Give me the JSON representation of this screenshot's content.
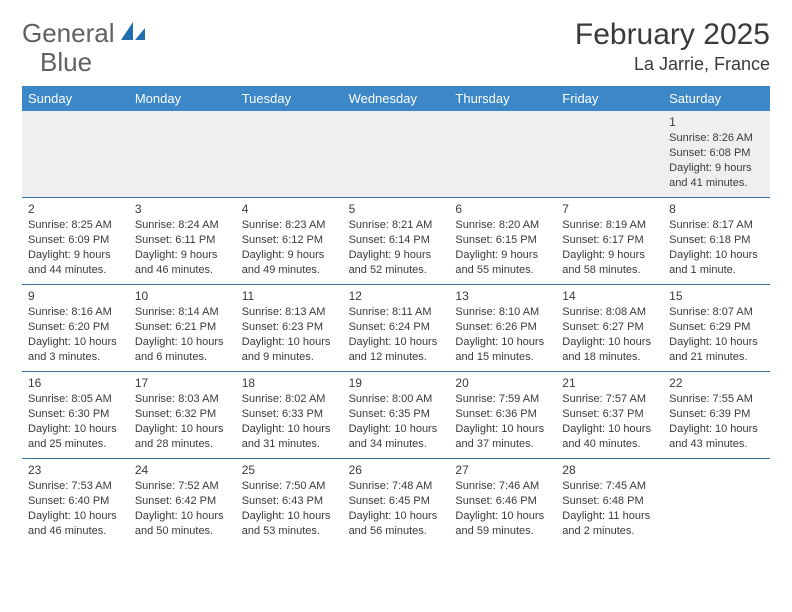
{
  "brand": {
    "part1": "General",
    "part2": "Blue"
  },
  "title": "February 2025",
  "location": "La Jarrie, France",
  "weekday_names": [
    "Sunday",
    "Monday",
    "Tuesday",
    "Wednesday",
    "Thursday",
    "Friday",
    "Saturday"
  ],
  "colors": {
    "header_bg": "#3b87c8",
    "header_text": "#ffffff",
    "row_border": "#3b6fa0",
    "shaded_row": "#efefef",
    "text": "#3a3a3a",
    "logo_accent": "#1f6fb0"
  },
  "weeks": [
    [
      null,
      null,
      null,
      null,
      null,
      null,
      {
        "day": "1",
        "sunrise": "Sunrise: 8:26 AM",
        "sunset": "Sunset: 6:08 PM",
        "daylight": "Daylight: 9 hours and 41 minutes."
      }
    ],
    [
      {
        "day": "2",
        "sunrise": "Sunrise: 8:25 AM",
        "sunset": "Sunset: 6:09 PM",
        "daylight": "Daylight: 9 hours and 44 minutes."
      },
      {
        "day": "3",
        "sunrise": "Sunrise: 8:24 AM",
        "sunset": "Sunset: 6:11 PM",
        "daylight": "Daylight: 9 hours and 46 minutes."
      },
      {
        "day": "4",
        "sunrise": "Sunrise: 8:23 AM",
        "sunset": "Sunset: 6:12 PM",
        "daylight": "Daylight: 9 hours and 49 minutes."
      },
      {
        "day": "5",
        "sunrise": "Sunrise: 8:21 AM",
        "sunset": "Sunset: 6:14 PM",
        "daylight": "Daylight: 9 hours and 52 minutes."
      },
      {
        "day": "6",
        "sunrise": "Sunrise: 8:20 AM",
        "sunset": "Sunset: 6:15 PM",
        "daylight": "Daylight: 9 hours and 55 minutes."
      },
      {
        "day": "7",
        "sunrise": "Sunrise: 8:19 AM",
        "sunset": "Sunset: 6:17 PM",
        "daylight": "Daylight: 9 hours and 58 minutes."
      },
      {
        "day": "8",
        "sunrise": "Sunrise: 8:17 AM",
        "sunset": "Sunset: 6:18 PM",
        "daylight": "Daylight: 10 hours and 1 minute."
      }
    ],
    [
      {
        "day": "9",
        "sunrise": "Sunrise: 8:16 AM",
        "sunset": "Sunset: 6:20 PM",
        "daylight": "Daylight: 10 hours and 3 minutes."
      },
      {
        "day": "10",
        "sunrise": "Sunrise: 8:14 AM",
        "sunset": "Sunset: 6:21 PM",
        "daylight": "Daylight: 10 hours and 6 minutes."
      },
      {
        "day": "11",
        "sunrise": "Sunrise: 8:13 AM",
        "sunset": "Sunset: 6:23 PM",
        "daylight": "Daylight: 10 hours and 9 minutes."
      },
      {
        "day": "12",
        "sunrise": "Sunrise: 8:11 AM",
        "sunset": "Sunset: 6:24 PM",
        "daylight": "Daylight: 10 hours and 12 minutes."
      },
      {
        "day": "13",
        "sunrise": "Sunrise: 8:10 AM",
        "sunset": "Sunset: 6:26 PM",
        "daylight": "Daylight: 10 hours and 15 minutes."
      },
      {
        "day": "14",
        "sunrise": "Sunrise: 8:08 AM",
        "sunset": "Sunset: 6:27 PM",
        "daylight": "Daylight: 10 hours and 18 minutes."
      },
      {
        "day": "15",
        "sunrise": "Sunrise: 8:07 AM",
        "sunset": "Sunset: 6:29 PM",
        "daylight": "Daylight: 10 hours and 21 minutes."
      }
    ],
    [
      {
        "day": "16",
        "sunrise": "Sunrise: 8:05 AM",
        "sunset": "Sunset: 6:30 PM",
        "daylight": "Daylight: 10 hours and 25 minutes."
      },
      {
        "day": "17",
        "sunrise": "Sunrise: 8:03 AM",
        "sunset": "Sunset: 6:32 PM",
        "daylight": "Daylight: 10 hours and 28 minutes."
      },
      {
        "day": "18",
        "sunrise": "Sunrise: 8:02 AM",
        "sunset": "Sunset: 6:33 PM",
        "daylight": "Daylight: 10 hours and 31 minutes."
      },
      {
        "day": "19",
        "sunrise": "Sunrise: 8:00 AM",
        "sunset": "Sunset: 6:35 PM",
        "daylight": "Daylight: 10 hours and 34 minutes."
      },
      {
        "day": "20",
        "sunrise": "Sunrise: 7:59 AM",
        "sunset": "Sunset: 6:36 PM",
        "daylight": "Daylight: 10 hours and 37 minutes."
      },
      {
        "day": "21",
        "sunrise": "Sunrise: 7:57 AM",
        "sunset": "Sunset: 6:37 PM",
        "daylight": "Daylight: 10 hours and 40 minutes."
      },
      {
        "day": "22",
        "sunrise": "Sunrise: 7:55 AM",
        "sunset": "Sunset: 6:39 PM",
        "daylight": "Daylight: 10 hours and 43 minutes."
      }
    ],
    [
      {
        "day": "23",
        "sunrise": "Sunrise: 7:53 AM",
        "sunset": "Sunset: 6:40 PM",
        "daylight": "Daylight: 10 hours and 46 minutes."
      },
      {
        "day": "24",
        "sunrise": "Sunrise: 7:52 AM",
        "sunset": "Sunset: 6:42 PM",
        "daylight": "Daylight: 10 hours and 50 minutes."
      },
      {
        "day": "25",
        "sunrise": "Sunrise: 7:50 AM",
        "sunset": "Sunset: 6:43 PM",
        "daylight": "Daylight: 10 hours and 53 minutes."
      },
      {
        "day": "26",
        "sunrise": "Sunrise: 7:48 AM",
        "sunset": "Sunset: 6:45 PM",
        "daylight": "Daylight: 10 hours and 56 minutes."
      },
      {
        "day": "27",
        "sunrise": "Sunrise: 7:46 AM",
        "sunset": "Sunset: 6:46 PM",
        "daylight": "Daylight: 10 hours and 59 minutes."
      },
      {
        "day": "28",
        "sunrise": "Sunrise: 7:45 AM",
        "sunset": "Sunset: 6:48 PM",
        "daylight": "Daylight: 11 hours and 2 minutes."
      },
      null
    ]
  ]
}
